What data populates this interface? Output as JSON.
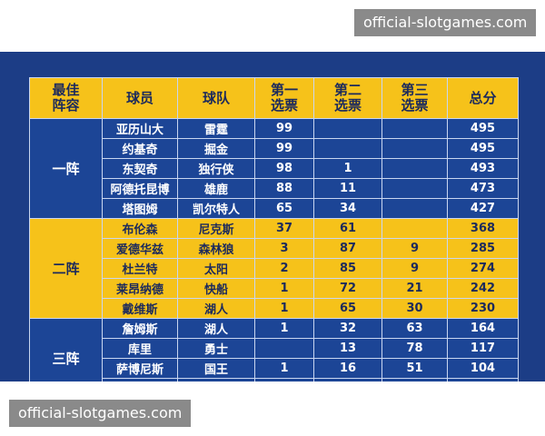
{
  "watermark_top": "official-slotgames.com",
  "watermark_bottom": "official-slotgames.com",
  "table": {
    "header": [
      "最佳阵容",
      "球员",
      "球队",
      "第一选票",
      "第二选票",
      "第三选票",
      "总分"
    ],
    "groups": [
      {
        "label": "一阵",
        "rows": [
          [
            "亚历山大",
            "雷霆",
            99,
            null,
            null,
            495
          ],
          [
            "约基奇",
            "掘金",
            99,
            null,
            null,
            495
          ],
          [
            "东契奇",
            "独行侠",
            98,
            1,
            null,
            493
          ],
          [
            "阿德托昆博",
            "雄鹿",
            88,
            11,
            null,
            473
          ],
          [
            "塔图姆",
            "凯尔特人",
            65,
            34,
            null,
            427
          ]
        ]
      },
      {
        "label": "二阵",
        "rows": [
          [
            "布伦森",
            "尼克斯",
            37,
            61,
            null,
            368
          ],
          [
            "爱德华兹",
            "森林狼",
            3,
            87,
            9,
            285
          ],
          [
            "杜兰特",
            "太阳",
            2,
            85,
            9,
            274
          ],
          [
            "莱昂纳德",
            "快船",
            1,
            72,
            21,
            242
          ],
          [
            "戴维斯",
            "湖人",
            1,
            65,
            30,
            230
          ]
        ]
      },
      {
        "label": "三阵",
        "rows": [
          [
            "詹姆斯",
            "湖人",
            1,
            32,
            63,
            164
          ],
          [
            "库里",
            "勇士",
            null,
            13,
            78,
            117
          ],
          [
            "萨博尼斯",
            "国王",
            1,
            16,
            51,
            104
          ]
        ]
      }
    ]
  }
}
